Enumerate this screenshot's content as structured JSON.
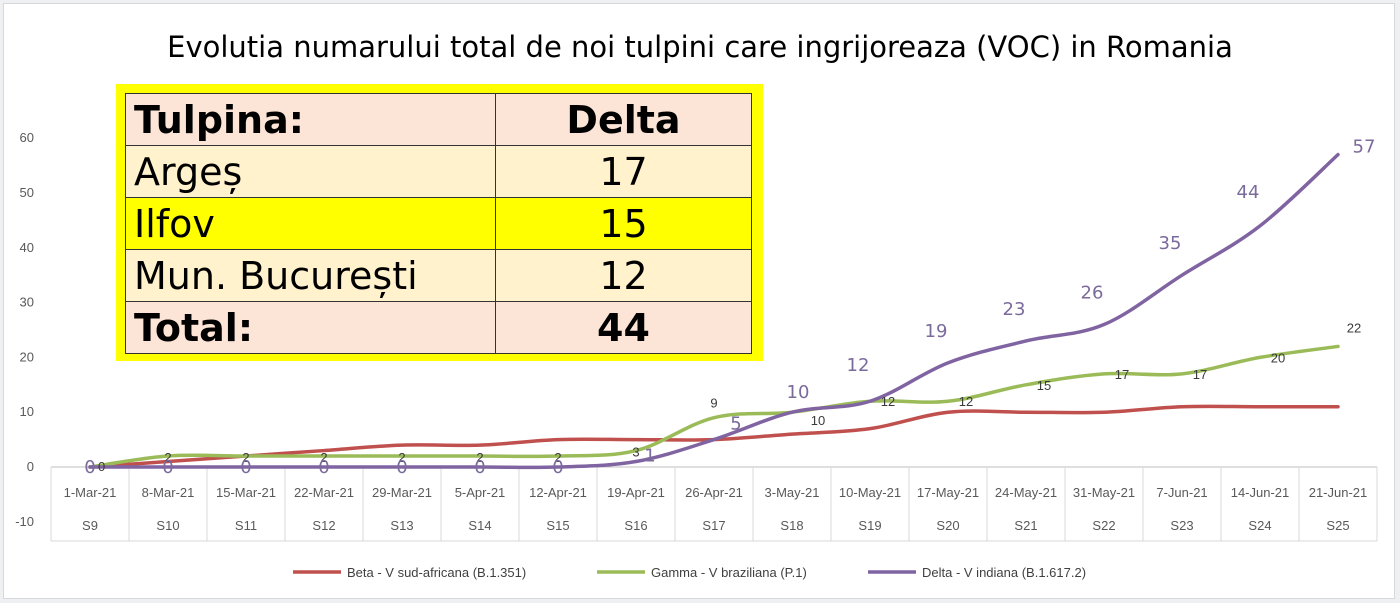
{
  "chart_data": {
    "type": "line",
    "title": "Evolutia numarului total de noi tulpini care ingrijoreaza (VOC) in Romania",
    "categories": [
      "1-Mar-21",
      "8-Mar-21",
      "15-Mar-21",
      "22-Mar-21",
      "29-Mar-21",
      "5-Apr-21",
      "12-Apr-21",
      "19-Apr-21",
      "26-Apr-21",
      "3-May-21",
      "10-May-21",
      "17-May-21",
      "24-May-21",
      "31-May-21",
      "7-Jun-21",
      "14-Jun-21",
      "21-Jun-21"
    ],
    "weeks": [
      "S9",
      "S10",
      "S11",
      "S12",
      "S13",
      "S14",
      "S15",
      "S16",
      "S17",
      "S18",
      "S19",
      "S20",
      "S21",
      "S22",
      "S23",
      "S24",
      "S25"
    ],
    "ylim": [
      -10,
      60
    ],
    "yticks": [
      -10,
      0,
      10,
      20,
      30,
      40,
      50,
      60
    ],
    "grid": false,
    "legend_position": "bottom",
    "series": [
      {
        "name": "Beta - V sud-africana (B.1.351)",
        "color": "#c0504d",
        "values": [
          0,
          1,
          2,
          3,
          4,
          4,
          5,
          5,
          5,
          6,
          7,
          10,
          10,
          10,
          11,
          11,
          11
        ]
      },
      {
        "name": "Gamma - V braziliana (P.1)",
        "color": "#9bbb59",
        "values": [
          0,
          2,
          2,
          2,
          2,
          2,
          2,
          3,
          9,
          10,
          12,
          12,
          15,
          17,
          17,
          20,
          22
        ]
      },
      {
        "name": "Delta - V indiana (B.1.617.2)",
        "color": "#8064a2",
        "values": [
          0,
          0,
          0,
          0,
          0,
          0,
          0,
          1,
          5,
          10,
          12,
          19,
          23,
          26,
          35,
          44,
          57
        ]
      }
    ],
    "table": {
      "header": [
        "Tulpina:",
        "Delta"
      ],
      "rows": [
        [
          "Argeș",
          "17"
        ],
        [
          "Ilfov",
          "15"
        ],
        [
          "Mun. București",
          "12"
        ]
      ],
      "total": [
        "Total:",
        "44"
      ]
    }
  }
}
